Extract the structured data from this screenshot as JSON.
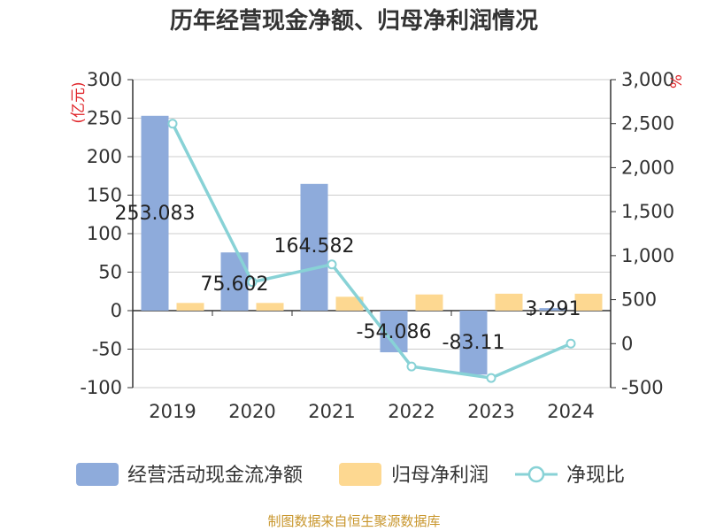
{
  "chart_data": {
    "type": "bar+line",
    "title": "历年经营现金净额、归母净利润情况",
    "categories": [
      "2019",
      "2020",
      "2021",
      "2022",
      "2023",
      "2024"
    ],
    "series": [
      {
        "name": "经营活动现金流净额",
        "kind": "bar",
        "axis": "left",
        "color": "#8eabdb",
        "values": [
          253.083,
          75.602,
          164.582,
          -54.086,
          -83.11,
          3.291
        ],
        "labels": [
          "253.083",
          "75.602",
          "164.582",
          "-54.086",
          "-83.11",
          "3.291"
        ]
      },
      {
        "name": "归母净利润",
        "kind": "bar",
        "axis": "left",
        "color": "#fdd891",
        "values": [
          10,
          10,
          18,
          21,
          22,
          22
        ]
      },
      {
        "name": "净现比",
        "kind": "line",
        "axis": "right",
        "color": "#88d2d6",
        "values": [
          2500,
          700,
          900,
          -260,
          -390,
          0
        ]
      }
    ],
    "y_left": {
      "label": "(亿元)",
      "min": -100,
      "max": 300,
      "ticks": [
        300,
        250,
        200,
        150,
        100,
        50,
        0,
        -50,
        -100
      ],
      "tick_labels": [
        "300",
        "250",
        "200",
        "150",
        "100",
        "50",
        "0",
        "-50",
        "-100"
      ]
    },
    "y_right": {
      "label": "%",
      "min": -500,
      "max": 3000,
      "ticks": [
        3000,
        2500,
        2000,
        1500,
        1000,
        500,
        0,
        -500
      ],
      "tick_labels": [
        "3,000",
        "2,500",
        "2,000",
        "1,500",
        "1,000",
        "500",
        "0",
        "-500"
      ]
    },
    "grid": true,
    "legend_position": "bottom"
  },
  "footer": "制图数据来自恒生聚源数据库",
  "colors": {
    "axis": "#333333",
    "grid": "#cccccc",
    "left_label": "#e0262b",
    "right_label": "#e0262b"
  }
}
